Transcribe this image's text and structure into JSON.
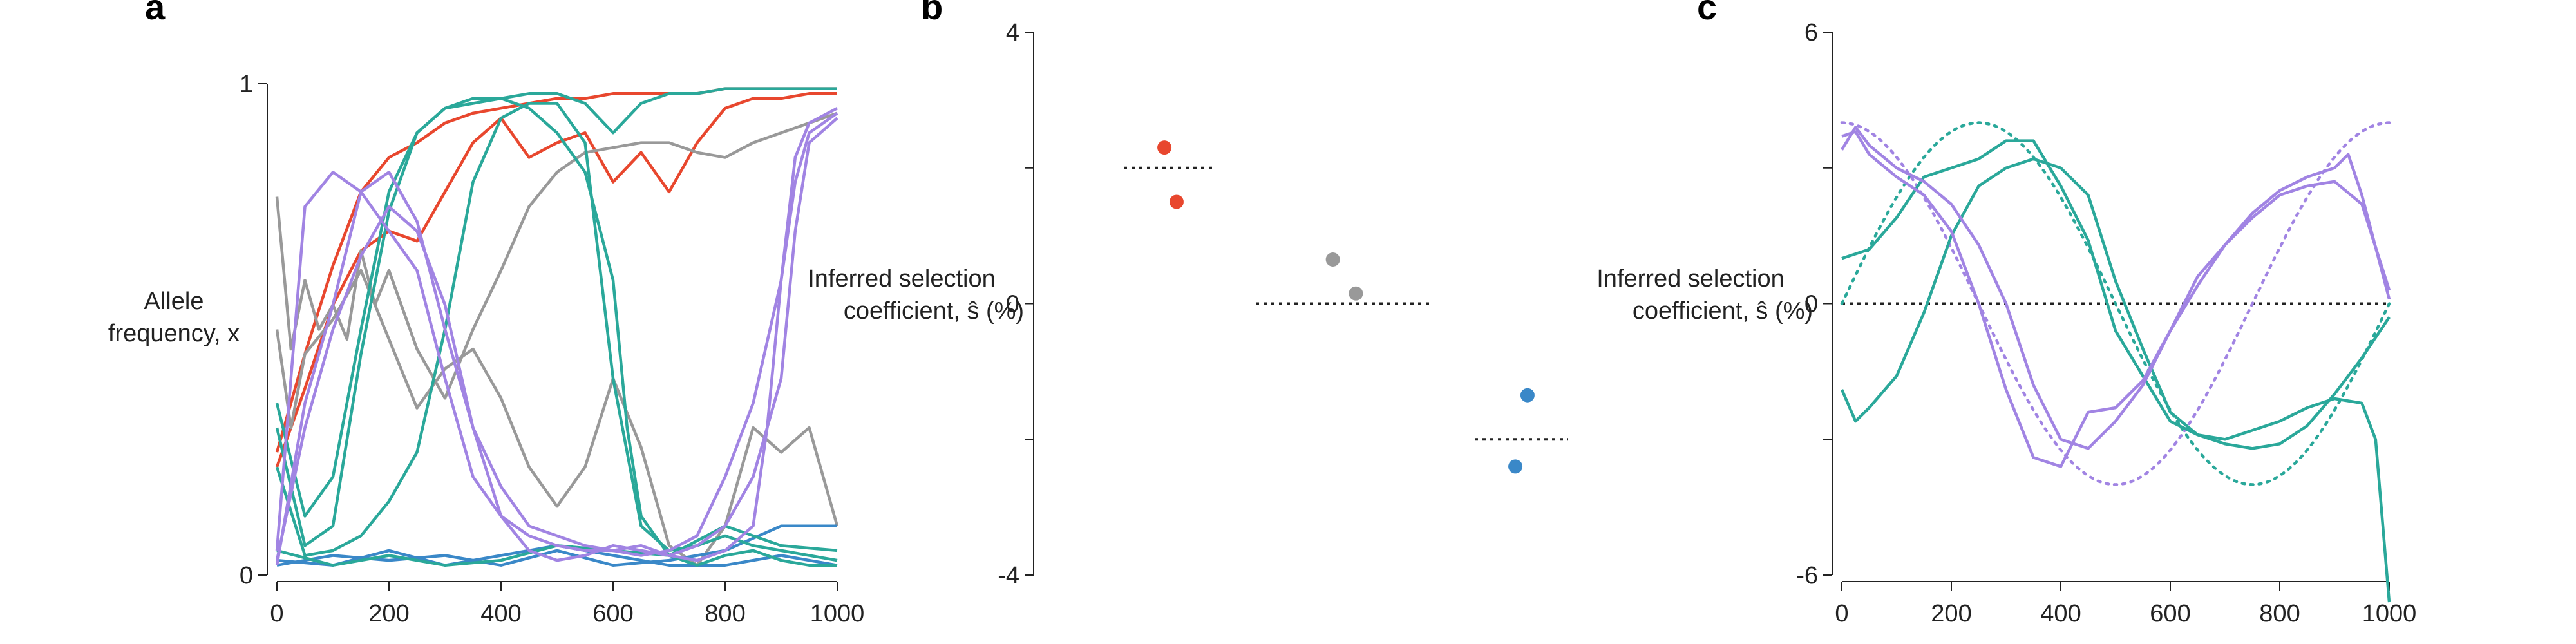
{
  "colors": {
    "red": "#e8472e",
    "gray": "#999999",
    "blue": "#3a88c8",
    "teal": "#2aa89a",
    "purple": "#a184e3",
    "axis": "#222222"
  },
  "chart_data": [
    {
      "panel": "a",
      "type": "line",
      "ylabel_line1": "Allele",
      "ylabel_line2": "frequency, x",
      "xlim": [
        0,
        1000
      ],
      "ylim": [
        0,
        1
      ],
      "xticks": [
        "0",
        "200",
        "400",
        "600",
        "800",
        "1000"
      ],
      "yticks": [
        "0",
        "1"
      ],
      "series": [
        {
          "color": "red",
          "x": [
            0,
            50,
            100,
            150,
            200,
            250,
            300,
            350,
            400,
            450,
            500,
            550,
            600,
            650,
            700,
            750,
            800,
            850,
            900,
            950,
            1000
          ],
          "y": [
            0.25,
            0.45,
            0.63,
            0.78,
            0.85,
            0.88,
            0.92,
            0.94,
            0.95,
            0.96,
            0.97,
            0.97,
            0.98,
            0.98,
            0.98,
            0.98,
            0.99,
            0.99,
            0.99,
            0.99,
            0.99
          ]
        },
        {
          "color": "red",
          "x": [
            0,
            50,
            100,
            150,
            200,
            250,
            300,
            350,
            400,
            450,
            500,
            550,
            600,
            650,
            700,
            750,
            800,
            850,
            900,
            950,
            1000
          ],
          "y": [
            0.22,
            0.38,
            0.55,
            0.66,
            0.7,
            0.68,
            0.78,
            0.88,
            0.93,
            0.85,
            0.88,
            0.9,
            0.8,
            0.86,
            0.78,
            0.88,
            0.95,
            0.97,
            0.97,
            0.98,
            0.98
          ]
        },
        {
          "color": "gray",
          "x": [
            0,
            25,
            50,
            75,
            100,
            125,
            150,
            175,
            200,
            250,
            300,
            350,
            400,
            450,
            500,
            550,
            600,
            650,
            700,
            750,
            800,
            850,
            900,
            950,
            1000
          ],
          "y": [
            0.77,
            0.46,
            0.6,
            0.5,
            0.55,
            0.48,
            0.66,
            0.55,
            0.62,
            0.46,
            0.36,
            0.5,
            0.62,
            0.75,
            0.82,
            0.86,
            0.87,
            0.88,
            0.88,
            0.86,
            0.85,
            0.88,
            0.9,
            0.92,
            0.94
          ]
        },
        {
          "color": "gray",
          "x": [
            0,
            25,
            50,
            100,
            150,
            200,
            250,
            300,
            350,
            400,
            450,
            500,
            550,
            600,
            650,
            700,
            750,
            800,
            850,
            900,
            950,
            1000
          ],
          "y": [
            0.5,
            0.3,
            0.45,
            0.52,
            0.62,
            0.48,
            0.34,
            0.42,
            0.46,
            0.36,
            0.22,
            0.14,
            0.22,
            0.4,
            0.26,
            0.06,
            0.02,
            0.1,
            0.3,
            0.25,
            0.3,
            0.1
          ]
        },
        {
          "color": "blue",
          "x": [
            0,
            100,
            200,
            300,
            400,
            500,
            600,
            700,
            800,
            900,
            1000
          ],
          "y": [
            0.02,
            0.04,
            0.03,
            0.04,
            0.02,
            0.05,
            0.02,
            0.03,
            0.05,
            0.1,
            0.1
          ]
        },
        {
          "color": "blue",
          "x": [
            0,
            100,
            200,
            300,
            400,
            500,
            600,
            700,
            800,
            900,
            1000
          ],
          "y": [
            0.03,
            0.02,
            0.05,
            0.02,
            0.04,
            0.06,
            0.04,
            0.02,
            0.02,
            0.04,
            0.02
          ]
        },
        {
          "color": "teal",
          "x": [
            0,
            50,
            100,
            150,
            200,
            250,
            300,
            350,
            400,
            450,
            500,
            550,
            600,
            650,
            700,
            750,
            800,
            850,
            900,
            950,
            1000
          ],
          "y": [
            0.35,
            0.12,
            0.2,
            0.5,
            0.78,
            0.9,
            0.95,
            0.96,
            0.97,
            0.98,
            0.98,
            0.96,
            0.9,
            0.96,
            0.98,
            0.98,
            0.99,
            0.99,
            0.99,
            0.99,
            0.99
          ]
        },
        {
          "color": "teal",
          "x": [
            0,
            50,
            100,
            150,
            200,
            250,
            300,
            350,
            400,
            450,
            500,
            550,
            600,
            625,
            650,
            700,
            750,
            800,
            850,
            900,
            950,
            1000
          ],
          "y": [
            0.3,
            0.06,
            0.1,
            0.45,
            0.74,
            0.9,
            0.95,
            0.97,
            0.97,
            0.95,
            0.9,
            0.82,
            0.6,
            0.3,
            0.12,
            0.04,
            0.02,
            0.04,
            0.05,
            0.03,
            0.02,
            0.02
          ]
        },
        {
          "color": "teal",
          "x": [
            0,
            50,
            100,
            150,
            200,
            250,
            300,
            350,
            400,
            450,
            500,
            550,
            600,
            650,
            700,
            750,
            800,
            850,
            900,
            950,
            1000
          ],
          "y": [
            0.22,
            0.04,
            0.05,
            0.08,
            0.15,
            0.25,
            0.5,
            0.8,
            0.93,
            0.96,
            0.96,
            0.88,
            0.4,
            0.1,
            0.05,
            0.06,
            0.08,
            0.06,
            0.05,
            0.04,
            0.03
          ]
        },
        {
          "color": "teal",
          "x": [
            0,
            100,
            200,
            300,
            400,
            500,
            600,
            700,
            800,
            900,
            1000
          ],
          "y": [
            0.05,
            0.02,
            0.04,
            0.02,
            0.03,
            0.06,
            0.05,
            0.04,
            0.1,
            0.06,
            0.05
          ]
        },
        {
          "color": "purple",
          "x": [
            0,
            50,
            100,
            150,
            200,
            250,
            300,
            350,
            400,
            450,
            500,
            550,
            600,
            650,
            700,
            750,
            800,
            850,
            875,
            900,
            925,
            950,
            1000
          ],
          "y": [
            0.05,
            0.75,
            0.82,
            0.78,
            0.7,
            0.62,
            0.4,
            0.2,
            0.12,
            0.08,
            0.06,
            0.05,
            0.05,
            0.06,
            0.04,
            0.03,
            0.05,
            0.1,
            0.3,
            0.6,
            0.85,
            0.92,
            0.95
          ]
        },
        {
          "color": "purple",
          "x": [
            0,
            50,
            100,
            150,
            200,
            250,
            300,
            350,
            400,
            450,
            500,
            550,
            600,
            650,
            700,
            750,
            800,
            850,
            900,
            925,
            950,
            1000
          ],
          "y": [
            0.02,
            0.35,
            0.55,
            0.78,
            0.82,
            0.72,
            0.5,
            0.3,
            0.18,
            0.1,
            0.08,
            0.06,
            0.05,
            0.04,
            0.05,
            0.08,
            0.2,
            0.35,
            0.6,
            0.8,
            0.9,
            0.94
          ]
        },
        {
          "color": "purple",
          "x": [
            0,
            50,
            100,
            150,
            200,
            250,
            300,
            350,
            400,
            450,
            500,
            550,
            600,
            650,
            700,
            750,
            800,
            850,
            900,
            925,
            950,
            1000
          ],
          "y": [
            0.03,
            0.3,
            0.5,
            0.65,
            0.75,
            0.7,
            0.55,
            0.3,
            0.12,
            0.05,
            0.03,
            0.04,
            0.06,
            0.05,
            0.04,
            0.06,
            0.1,
            0.2,
            0.4,
            0.7,
            0.88,
            0.93
          ]
        }
      ]
    },
    {
      "panel": "b",
      "type": "scatter",
      "ylabel_line1": "Inferred selection",
      "ylabel_line2": "coefficient, ŝ (%)",
      "ylim": [
        -4,
        4
      ],
      "yticks": [
        "4",
        "0",
        "-4"
      ],
      "true_values": [
        {
          "color": "red",
          "value": 2.0
        },
        {
          "color": "gray",
          "value": 0.0
        },
        {
          "color": "blue",
          "value": -2.0
        }
      ],
      "points": [
        {
          "color": "red",
          "group": 0,
          "y": 2.3
        },
        {
          "color": "red",
          "group": 0,
          "y": 1.5
        },
        {
          "color": "gray",
          "group": 1,
          "y": 0.65
        },
        {
          "color": "gray",
          "group": 1,
          "y": 0.15
        },
        {
          "color": "blue",
          "group": 2,
          "y": -1.35
        },
        {
          "color": "blue",
          "group": 2,
          "y": -2.4
        }
      ]
    },
    {
      "panel": "c",
      "type": "line",
      "ylabel_line1": "Inferred selection",
      "ylabel_line2": "coefficient, ŝ (%)",
      "xlim": [
        0,
        1000
      ],
      "ylim": [
        -6,
        6
      ],
      "xticks": [
        "0",
        "200",
        "400",
        "600",
        "800",
        "1000"
      ],
      "yticks": [
        "6",
        "0",
        "-6"
      ],
      "true_curves": [
        {
          "color": "teal",
          "amplitude": 4,
          "phase": 0
        },
        {
          "color": "purple",
          "amplitude": 4,
          "phase": 90
        }
      ],
      "series": [
        {
          "color": "teal",
          "x": [
            0,
            50,
            100,
            150,
            200,
            250,
            300,
            350,
            400,
            450,
            500,
            550,
            600,
            650,
            700,
            750,
            800,
            850,
            900,
            950,
            1000
          ],
          "y": [
            1.0,
            1.2,
            1.9,
            2.8,
            3.0,
            3.2,
            3.6,
            3.6,
            2.6,
            1.4,
            -0.6,
            -1.6,
            -2.6,
            -2.9,
            -3.1,
            -3.2,
            -3.1,
            -2.7,
            -2.0,
            -1.2,
            -0.3
          ]
        },
        {
          "color": "teal",
          "x": [
            0,
            25,
            50,
            100,
            150,
            200,
            250,
            300,
            350,
            400,
            450,
            500,
            550,
            600,
            650,
            700,
            750,
            800,
            850,
            900,
            950,
            975,
            1000
          ],
          "y": [
            -1.9,
            -2.6,
            -2.3,
            -1.6,
            -0.2,
            1.5,
            2.6,
            3.0,
            3.2,
            3.0,
            2.4,
            0.5,
            -1.0,
            -2.4,
            -2.9,
            -3.0,
            -2.8,
            -2.6,
            -2.3,
            -2.1,
            -2.2,
            -3.0,
            -6.8
          ]
        },
        {
          "color": "purple",
          "x": [
            0,
            25,
            50,
            100,
            150,
            200,
            250,
            300,
            350,
            400,
            450,
            500,
            550,
            600,
            650,
            700,
            750,
            800,
            850,
            900,
            925,
            950,
            1000
          ],
          "y": [
            3.4,
            3.9,
            3.5,
            3.0,
            2.7,
            2.2,
            1.3,
            0.0,
            -1.8,
            -3.0,
            -3.2,
            -2.6,
            -1.8,
            -0.6,
            0.4,
            1.3,
            2.0,
            2.5,
            2.8,
            3.0,
            3.3,
            2.4,
            0.1
          ]
        },
        {
          "color": "purple",
          "x": [
            0,
            25,
            50,
            100,
            150,
            200,
            250,
            300,
            350,
            400,
            450,
            500,
            550,
            600,
            650,
            700,
            750,
            800,
            850,
            900,
            950,
            1000
          ],
          "y": [
            3.7,
            3.8,
            3.3,
            2.8,
            2.4,
            1.6,
            0.0,
            -1.9,
            -3.4,
            -3.6,
            -2.4,
            -2.3,
            -1.7,
            -0.6,
            0.6,
            1.3,
            1.9,
            2.4,
            2.6,
            2.7,
            2.2,
            0.3
          ]
        }
      ]
    }
  ]
}
